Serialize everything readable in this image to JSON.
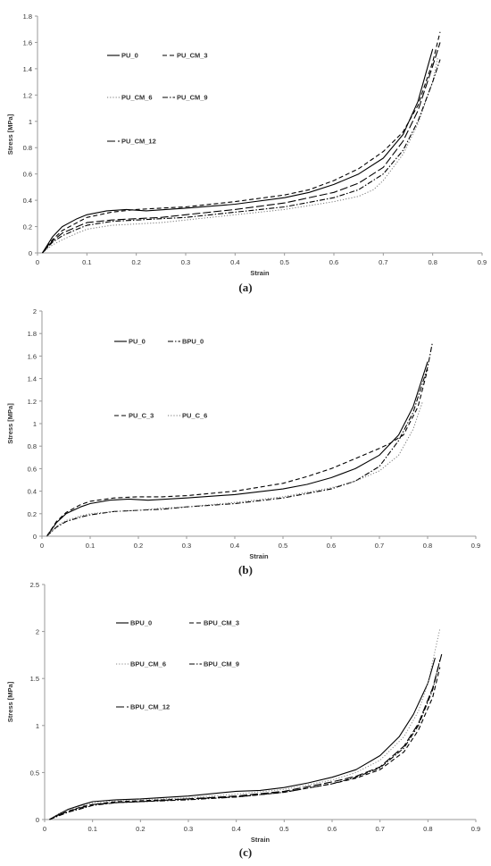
{
  "figure": {
    "captions": [
      "(a)",
      "(b)",
      "(c)"
    ]
  },
  "chart_data": [
    {
      "type": "line",
      "xlabel": "Strain",
      "ylabel": "Stress [MPa]",
      "xlim": [
        0,
        0.9
      ],
      "ylim": [
        0,
        1.8
      ],
      "xticks": [
        0,
        0.1,
        0.2,
        0.3,
        0.4,
        0.5,
        0.6,
        0.7,
        0.8,
        0.9
      ],
      "yticks": [
        0,
        0.2,
        0.4,
        0.6,
        0.8,
        1,
        1.2,
        1.4,
        1.6,
        1.8
      ],
      "grid": false,
      "legend_position": "top-left",
      "series": [
        {
          "name": "PU_0",
          "dash": "solid",
          "color": "#000000",
          "x": [
            0.01,
            0.03,
            0.05,
            0.08,
            0.1,
            0.14,
            0.18,
            0.22,
            0.3,
            0.4,
            0.5,
            0.55,
            0.6,
            0.65,
            0.7,
            0.74,
            0.77,
            0.8
          ],
          "y": [
            0.0,
            0.12,
            0.2,
            0.26,
            0.29,
            0.32,
            0.33,
            0.32,
            0.34,
            0.37,
            0.42,
            0.46,
            0.52,
            0.6,
            0.72,
            0.9,
            1.15,
            1.55
          ]
        },
        {
          "name": "PU_CM_3",
          "dash": "dashed",
          "color": "#000000",
          "x": [
            0.01,
            0.03,
            0.05,
            0.08,
            0.1,
            0.15,
            0.2,
            0.25,
            0.3,
            0.4,
            0.5,
            0.55,
            0.6,
            0.65,
            0.7,
            0.74,
            0.77,
            0.8,
            0.815
          ],
          "y": [
            0.0,
            0.1,
            0.17,
            0.23,
            0.27,
            0.31,
            0.33,
            0.34,
            0.35,
            0.39,
            0.44,
            0.48,
            0.55,
            0.64,
            0.77,
            0.92,
            1.12,
            1.45,
            1.68
          ]
        },
        {
          "name": "PU_CM_6",
          "dash": "dotted",
          "color": "#777777",
          "x": [
            0.01,
            0.03,
            0.05,
            0.08,
            0.1,
            0.15,
            0.2,
            0.25,
            0.3,
            0.4,
            0.5,
            0.6,
            0.65,
            0.68,
            0.7,
            0.74,
            0.77,
            0.8,
            0.81
          ],
          "y": [
            0.0,
            0.06,
            0.1,
            0.15,
            0.18,
            0.21,
            0.22,
            0.23,
            0.25,
            0.29,
            0.33,
            0.39,
            0.43,
            0.48,
            0.55,
            0.75,
            0.98,
            1.3,
            1.48
          ]
        },
        {
          "name": "PU_CM_9",
          "dash": "dashdot",
          "color": "#000000",
          "x": [
            0.01,
            0.03,
            0.05,
            0.08,
            0.1,
            0.15,
            0.2,
            0.25,
            0.3,
            0.4,
            0.5,
            0.6,
            0.65,
            0.7,
            0.74,
            0.77,
            0.8,
            0.815
          ],
          "y": [
            0.0,
            0.08,
            0.13,
            0.18,
            0.21,
            0.24,
            0.25,
            0.26,
            0.27,
            0.31,
            0.35,
            0.42,
            0.48,
            0.6,
            0.78,
            1.0,
            1.3,
            1.47
          ]
        },
        {
          "name": "PU_CM_12",
          "dash": "longdash",
          "color": "#000000",
          "x": [
            0.01,
            0.03,
            0.05,
            0.08,
            0.1,
            0.15,
            0.2,
            0.25,
            0.3,
            0.4,
            0.5,
            0.6,
            0.65,
            0.7,
            0.74,
            0.77,
            0.8,
            0.815
          ],
          "y": [
            0.0,
            0.09,
            0.15,
            0.2,
            0.23,
            0.25,
            0.26,
            0.27,
            0.29,
            0.33,
            0.38,
            0.46,
            0.53,
            0.65,
            0.85,
            1.08,
            1.42,
            1.6
          ]
        }
      ]
    },
    {
      "type": "line",
      "xlabel": "Strain",
      "ylabel": "Stress [MPa]",
      "xlim": [
        0,
        0.9
      ],
      "ylim": [
        0,
        2
      ],
      "xticks": [
        0,
        0.1,
        0.2,
        0.3,
        0.4,
        0.5,
        0.6,
        0.7,
        0.8,
        0.9
      ],
      "yticks": [
        0,
        0.2,
        0.4,
        0.6,
        0.8,
        1,
        1.2,
        1.4,
        1.6,
        1.8,
        2
      ],
      "grid": false,
      "legend_position": "top-left",
      "series": [
        {
          "name": "PU_0",
          "dash": "solid",
          "color": "#000000",
          "x": [
            0.01,
            0.03,
            0.05,
            0.08,
            0.1,
            0.14,
            0.18,
            0.22,
            0.3,
            0.4,
            0.5,
            0.55,
            0.6,
            0.65,
            0.7,
            0.74,
            0.77,
            0.8
          ],
          "y": [
            0.0,
            0.12,
            0.2,
            0.26,
            0.29,
            0.32,
            0.33,
            0.32,
            0.34,
            0.37,
            0.42,
            0.46,
            0.52,
            0.6,
            0.72,
            0.9,
            1.15,
            1.55
          ]
        },
        {
          "name": "BPU_0",
          "dash": "dashdot",
          "color": "#000000",
          "x": [
            0.01,
            0.03,
            0.05,
            0.08,
            0.1,
            0.15,
            0.2,
            0.25,
            0.3,
            0.4,
            0.5,
            0.6,
            0.65,
            0.7,
            0.74,
            0.77,
            0.8,
            0.81
          ],
          "y": [
            0.0,
            0.08,
            0.13,
            0.17,
            0.19,
            0.22,
            0.23,
            0.24,
            0.26,
            0.29,
            0.34,
            0.42,
            0.49,
            0.62,
            0.85,
            1.1,
            1.5,
            1.72
          ]
        },
        {
          "name": "PU_C_3",
          "dash": "dashed",
          "color": "#000000",
          "x": [
            0.01,
            0.03,
            0.05,
            0.08,
            0.1,
            0.15,
            0.2,
            0.25,
            0.3,
            0.4,
            0.5,
            0.55,
            0.6,
            0.65,
            0.7,
            0.72,
            0.75,
            0.78,
            0.8
          ],
          "y": [
            0.0,
            0.13,
            0.21,
            0.28,
            0.31,
            0.34,
            0.35,
            0.35,
            0.36,
            0.4,
            0.47,
            0.53,
            0.6,
            0.69,
            0.78,
            0.82,
            0.9,
            1.15,
            1.48
          ]
        },
        {
          "name": "PU_C_6",
          "dash": "dotted",
          "color": "#777777",
          "x": [
            0.01,
            0.03,
            0.05,
            0.08,
            0.1,
            0.15,
            0.2,
            0.25,
            0.3,
            0.4,
            0.5,
            0.6,
            0.65,
            0.7,
            0.74,
            0.77,
            0.79
          ],
          "y": [
            0.0,
            0.09,
            0.14,
            0.18,
            0.2,
            0.22,
            0.23,
            0.25,
            0.26,
            0.3,
            0.35,
            0.43,
            0.49,
            0.58,
            0.72,
            0.95,
            1.2
          ]
        }
      ]
    },
    {
      "type": "line",
      "xlabel": "Strain",
      "ylabel": "Stress [MPa]",
      "xlim": [
        0,
        0.9
      ],
      "ylim": [
        0,
        2.5
      ],
      "xticks": [
        0,
        0.1,
        0.2,
        0.3,
        0.4,
        0.5,
        0.6,
        0.7,
        0.8,
        0.9
      ],
      "yticks": [
        0,
        0.5,
        1,
        1.5,
        2,
        2.5
      ],
      "grid": false,
      "legend_position": "top-left",
      "series": [
        {
          "name": "BPU_0",
          "dash": "solid",
          "color": "#000000",
          "x": [
            0.01,
            0.03,
            0.05,
            0.08,
            0.1,
            0.15,
            0.2,
            0.3,
            0.4,
            0.45,
            0.5,
            0.55,
            0.6,
            0.65,
            0.7,
            0.74,
            0.77,
            0.8,
            0.815
          ],
          "y": [
            0.0,
            0.06,
            0.11,
            0.16,
            0.19,
            0.21,
            0.22,
            0.25,
            0.3,
            0.31,
            0.34,
            0.39,
            0.45,
            0.53,
            0.68,
            0.88,
            1.12,
            1.45,
            1.72
          ]
        },
        {
          "name": "BPU_CM_3",
          "dash": "dashed",
          "color": "#000000",
          "x": [
            0.01,
            0.03,
            0.05,
            0.08,
            0.1,
            0.15,
            0.2,
            0.3,
            0.4,
            0.5,
            0.6,
            0.65,
            0.7,
            0.75,
            0.78,
            0.81,
            0.825
          ],
          "y": [
            0.0,
            0.05,
            0.09,
            0.14,
            0.16,
            0.19,
            0.2,
            0.22,
            0.24,
            0.29,
            0.38,
            0.44,
            0.53,
            0.72,
            0.95,
            1.3,
            1.62
          ]
        },
        {
          "name": "BPU_CM_6",
          "dash": "dotted",
          "color": "#888888",
          "x": [
            0.01,
            0.03,
            0.05,
            0.08,
            0.1,
            0.15,
            0.2,
            0.3,
            0.4,
            0.5,
            0.6,
            0.65,
            0.7,
            0.75,
            0.78,
            0.8,
            0.825
          ],
          "y": [
            0.0,
            0.06,
            0.1,
            0.15,
            0.18,
            0.2,
            0.21,
            0.23,
            0.27,
            0.32,
            0.42,
            0.5,
            0.63,
            0.88,
            1.15,
            1.45,
            2.03
          ]
        },
        {
          "name": "BPU_CM_9",
          "dash": "dashdot",
          "color": "#000000",
          "x": [
            0.01,
            0.03,
            0.05,
            0.08,
            0.1,
            0.15,
            0.2,
            0.3,
            0.4,
            0.5,
            0.6,
            0.65,
            0.7,
            0.75,
            0.78,
            0.81,
            0.825
          ],
          "y": [
            0.0,
            0.04,
            0.08,
            0.12,
            0.15,
            0.18,
            0.19,
            0.21,
            0.24,
            0.29,
            0.38,
            0.45,
            0.55,
            0.76,
            1.0,
            1.38,
            1.7
          ]
        },
        {
          "name": "BPU_CM_12",
          "dash": "longdash",
          "color": "#000000",
          "x": [
            0.01,
            0.03,
            0.05,
            0.08,
            0.1,
            0.15,
            0.2,
            0.3,
            0.4,
            0.5,
            0.6,
            0.65,
            0.7,
            0.75,
            0.78,
            0.81,
            0.83
          ],
          "y": [
            0.0,
            0.05,
            0.09,
            0.13,
            0.16,
            0.18,
            0.19,
            0.22,
            0.25,
            0.3,
            0.4,
            0.46,
            0.56,
            0.78,
            1.02,
            1.4,
            1.78
          ]
        }
      ]
    }
  ]
}
